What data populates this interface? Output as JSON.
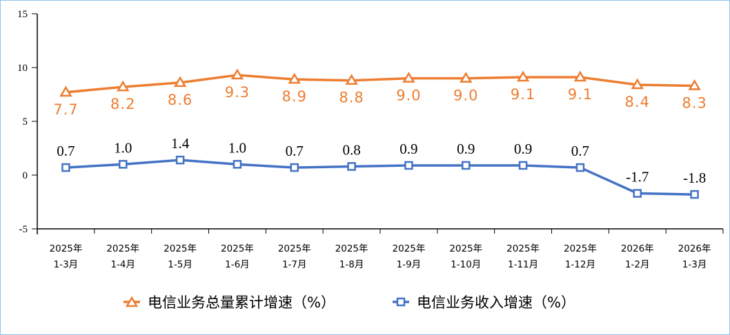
{
  "chart_data": {
    "type": "line",
    "categories": [
      "2025年\n1-3月",
      "2025年\n1-4月",
      "2025年\n1-5月",
      "2025年\n1-6月",
      "2025年\n1-7月",
      "2025年\n1-8月",
      "2025年\n1-9月",
      "2025年\n1-10月",
      "2025年\n1-11月",
      "2025年\n1-12月",
      "2026年\n1-2月",
      "2026年\n1-3月"
    ],
    "series": [
      {
        "name": "电信业务总量累计增速（%）",
        "color": "#ed7d31",
        "marker": "triangle",
        "label_position": "below",
        "values": [
          7.7,
          8.2,
          8.6,
          9.3,
          8.9,
          8.8,
          9.0,
          9.0,
          9.1,
          9.1,
          8.4,
          8.3
        ]
      },
      {
        "name": "电信业务收入增速（%）",
        "color": "#4472c4",
        "marker": "square",
        "label_position": "above",
        "values": [
          0.7,
          1.0,
          1.4,
          1.0,
          0.7,
          0.8,
          0.9,
          0.9,
          0.9,
          0.7,
          -1.7,
          -1.8
        ]
      }
    ],
    "ylim": [
      -5,
      15
    ],
    "yticks": [
      -5,
      0,
      5,
      10,
      15
    ],
    "grid": false,
    "legend": "bottom"
  }
}
